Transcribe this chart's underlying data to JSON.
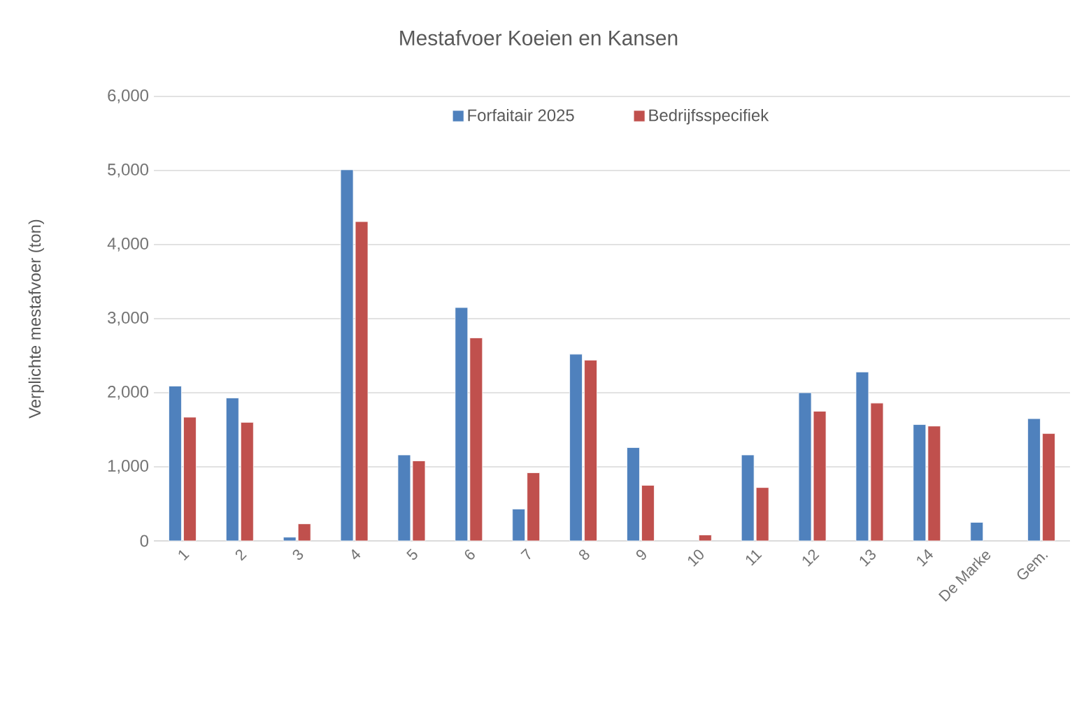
{
  "chart_data": {
    "type": "bar",
    "title": "Mestafvoer Koeien en Kansen",
    "ylabel": "Verplichte mestafvoer (ton)",
    "categories": [
      "1",
      "2",
      "3",
      "4",
      "5",
      "6",
      "7",
      "8",
      "9",
      "10",
      "11",
      "12",
      "13",
      "14",
      "De Marke",
      "Gem."
    ],
    "series": [
      {
        "name": "Forfaitair 2025",
        "color": "#4f81bd",
        "values": [
          2090,
          1930,
          50,
          5010,
          1160,
          3150,
          430,
          2520,
          1260,
          null,
          1160,
          2000,
          2280,
          1570,
          250,
          1650
        ]
      },
      {
        "name": "Bedrijfsspecifiek",
        "color": "#c0504d",
        "values": [
          1670,
          1600,
          230,
          4310,
          1080,
          2740,
          920,
          2440,
          750,
          80,
          720,
          1750,
          1860,
          1550,
          null,
          1450
        ]
      }
    ],
    "ylim": [
      0,
      6000
    ],
    "yticks": [
      0,
      {
        "value": 1000,
        "label": "1,000"
      },
      {
        "value": 2000,
        "label": "2,000"
      },
      {
        "value": 3000,
        "label": "3,000"
      },
      {
        "value": 4000,
        "label": "4,000"
      },
      {
        "value": 5000,
        "label": "5,000"
      },
      {
        "value": 6000,
        "label": "6,000"
      }
    ],
    "grid": "y",
    "legend": "top"
  }
}
